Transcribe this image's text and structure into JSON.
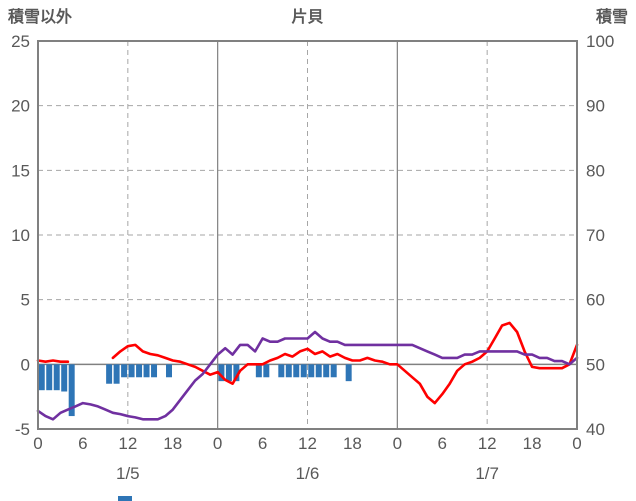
{
  "header": {
    "left_axis_title": "積雪以外",
    "title": "片貝",
    "right_axis_title": "積雪"
  },
  "chart_data": {
    "type": "line",
    "title": "片貝",
    "legend_position": "none",
    "grid": true,
    "colors": {
      "red_line": "#FF0000",
      "purple_line": "#7030A0",
      "blue_bars": "#2E75B6",
      "grid": "#A6A6A6",
      "border": "#808080",
      "zero_line": "#808080",
      "text": "#595959"
    },
    "left_axis": {
      "title": "積雪以外",
      "min": -5,
      "max": 25,
      "ticks": [
        "25",
        "20",
        "15",
        "10",
        "5",
        "0",
        "-5"
      ],
      "tick_values": [
        25,
        20,
        15,
        10,
        5,
        0,
        -5
      ]
    },
    "right_axis": {
      "title": "積雪",
      "min": 40,
      "max": 100,
      "ticks": [
        "100",
        "90",
        "80",
        "70",
        "60",
        "50",
        "40"
      ],
      "tick_values": [
        100,
        90,
        80,
        70,
        60,
        50,
        40
      ]
    },
    "x_axis": {
      "total_hours": 72,
      "tick_interval": 6,
      "tick_labels": [
        "0",
        "6",
        "12",
        "18",
        "0",
        "6",
        "12",
        "18",
        "0",
        "6",
        "12",
        "18",
        "0"
      ],
      "day_labels": [
        "1/5",
        "1/6",
        "1/7"
      ],
      "day_label_positions_hours": [
        12,
        36,
        60
      ],
      "solid_gridlines_hours": [
        24,
        48
      ],
      "dashed_gridlines_hours": [
        12,
        36,
        60
      ]
    },
    "series": [
      {
        "name": "red-line",
        "type": "line",
        "axis": "left",
        "color": "#FF0000",
        "values": [
          0.3,
          0.2,
          0.3,
          0.2,
          0.2,
          null,
          null,
          null,
          null,
          null,
          0.5,
          1.0,
          1.4,
          1.5,
          1.0,
          0.8,
          0.7,
          0.5,
          0.3,
          0.2,
          0.0,
          -0.2,
          -0.5,
          -0.8,
          -0.6,
          -1.2,
          -1.5,
          -0.5,
          0.0,
          0.0,
          0.0,
          0.3,
          0.5,
          0.8,
          0.6,
          1.0,
          1.2,
          0.8,
          1.0,
          0.6,
          0.8,
          0.5,
          0.3,
          0.3,
          0.5,
          0.3,
          0.2,
          0.0,
          0.0,
          -0.5,
          -1.0,
          -1.5,
          -2.5,
          -3.0,
          -2.3,
          -1.5,
          -0.5,
          0.0,
          0.2,
          0.5,
          1.0,
          2.0,
          3.0,
          3.2,
          2.5,
          1.0,
          -0.2,
          -0.3,
          -0.3,
          -0.3,
          -0.3,
          0.0,
          1.5
        ]
      },
      {
        "name": "purple-line",
        "type": "line",
        "axis": "right",
        "color": "#7030A0",
        "values": [
          42.8,
          42.0,
          41.5,
          42.5,
          43.0,
          43.5,
          44.0,
          43.8,
          43.5,
          43.0,
          42.5,
          42.3,
          42.0,
          41.8,
          41.5,
          41.5,
          41.5,
          42.0,
          43.0,
          44.5,
          46.0,
          47.5,
          48.5,
          50.0,
          51.5,
          52.5,
          51.5,
          53.0,
          53.0,
          52.0,
          54.0,
          53.5,
          53.5,
          54.0,
          54.0,
          54.0,
          54.0,
          55.0,
          54.0,
          53.5,
          53.5,
          53.0,
          53.0,
          53.0,
          53.0,
          53.0,
          53.0,
          53.0,
          53.0,
          53.0,
          53.0,
          52.5,
          52.0,
          51.5,
          51.0,
          51.0,
          51.0,
          51.5,
          51.5,
          52.0,
          52.0,
          52.0,
          52.0,
          52.0,
          52.0,
          51.5,
          51.5,
          51.0,
          51.0,
          50.5,
          50.5,
          50.0,
          51.0
        ]
      },
      {
        "name": "blue-bars",
        "type": "bar",
        "axis": "left",
        "color": "#2E75B6",
        "points": [
          [
            0,
            -2.0
          ],
          [
            1,
            -2.0
          ],
          [
            2,
            -2.0
          ],
          [
            3,
            -2.1
          ],
          [
            4,
            -4.0
          ],
          [
            9,
            -1.5
          ],
          [
            10,
            -1.5
          ],
          [
            11,
            -1.0
          ],
          [
            12,
            -1.0
          ],
          [
            13,
            -1.0
          ],
          [
            14,
            -1.0
          ],
          [
            15,
            -1.0
          ],
          [
            17,
            -1.0
          ],
          [
            24,
            -1.3
          ],
          [
            25,
            -1.3
          ],
          [
            26,
            -1.3
          ],
          [
            29,
            -1.0
          ],
          [
            30,
            -1.0
          ],
          [
            32,
            -1.0
          ],
          [
            33,
            -1.0
          ],
          [
            34,
            -1.0
          ],
          [
            35,
            -1.0
          ],
          [
            36,
            -1.0
          ],
          [
            37,
            -1.0
          ],
          [
            38,
            -1.0
          ],
          [
            39,
            -1.0
          ],
          [
            41,
            -1.3
          ]
        ]
      }
    ]
  }
}
